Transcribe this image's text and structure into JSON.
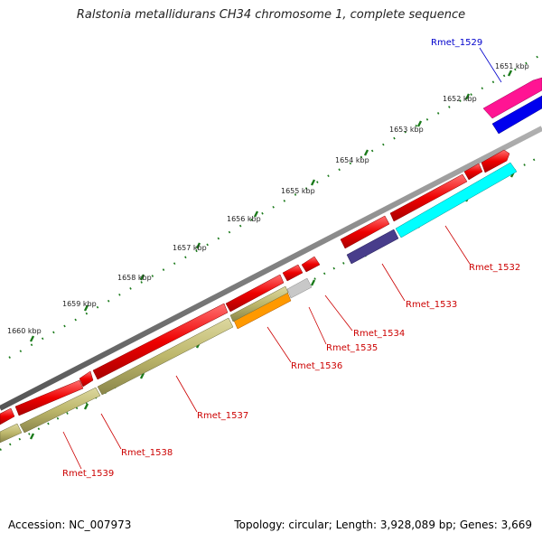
{
  "title": "Ralstonia metallidurans CH34 chromosome 1, complete sequence",
  "footer": {
    "accession": "Accession: NC_007973",
    "summary": "Topology: circular; Length: 3,928,089 bp; Genes: 3,669"
  },
  "colors": {
    "backbone": "#808080",
    "forward_gene": "#ee0000",
    "tick_dots": "#1a7a1a",
    "label_red": "#cc0000",
    "label_blue": "#0000cc"
  },
  "kbp_labels": [
    "1651 kbp",
    "1652 kbp",
    "1653 kbp",
    "1654 kbp",
    "1655 kbp",
    "1656 kbp",
    "1657 kbp",
    "1658 kbp",
    "1659 kbp",
    "1660 kbp"
  ],
  "gene_labels": [
    {
      "id": "Rmet_1529",
      "color": "#0000cc"
    },
    {
      "id": "Rmet_1532",
      "color": "#cc0000"
    },
    {
      "id": "Rmet_1533",
      "color": "#cc0000"
    },
    {
      "id": "Rmet_1534",
      "color": "#cc0000"
    },
    {
      "id": "Rmet_1535",
      "color": "#cc0000"
    },
    {
      "id": "Rmet_1536",
      "color": "#cc0000"
    },
    {
      "id": "Rmet_1537",
      "color": "#cc0000"
    },
    {
      "id": "Rmet_1538",
      "color": "#cc0000"
    },
    {
      "id": "Rmet_1539",
      "color": "#cc0000"
    }
  ]
}
